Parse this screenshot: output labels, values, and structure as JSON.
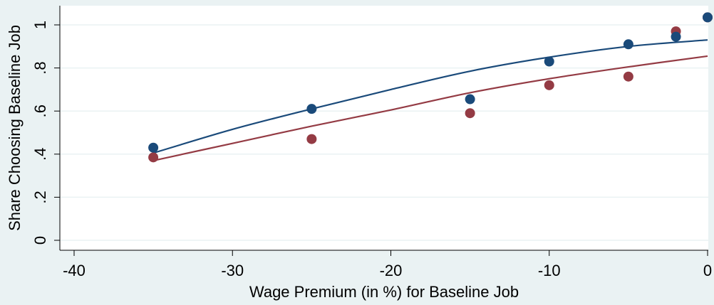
{
  "chart_data": {
    "type": "scatter",
    "xlabel": "Wage Premium (in %) for Baseline Job",
    "ylabel": "Share Choosing Baseline Job",
    "xlim": [
      -40,
      0
    ],
    "ylim": [
      0,
      1
    ],
    "x_ticks": [
      -40,
      -30,
      -20,
      -10,
      0
    ],
    "y_ticks": [
      0,
      0.2,
      0.4,
      0.6,
      0.8,
      1
    ],
    "x_tick_labels": [
      "-40",
      "-30",
      "-20",
      "-10",
      "0"
    ],
    "y_tick_labels": [
      "0",
      ".2",
      ".4",
      ".6",
      ".8",
      "1"
    ],
    "grid": "horizontal",
    "series": [
      {
        "color": "#1a4a7a",
        "points": [
          {
            "x": -35,
            "y": 0.43
          },
          {
            "x": -25,
            "y": 0.61
          },
          {
            "x": -15,
            "y": 0.655
          },
          {
            "x": -10,
            "y": 0.83
          },
          {
            "x": -5,
            "y": 0.91
          },
          {
            "x": -2,
            "y": 0.945
          },
          {
            "x": 0,
            "y": 1.035
          }
        ],
        "fit_line": [
          {
            "x": -35,
            "y": 0.405
          },
          {
            "x": -30,
            "y": 0.515
          },
          {
            "x": -25,
            "y": 0.61
          },
          {
            "x": -20,
            "y": 0.7
          },
          {
            "x": -15,
            "y": 0.785
          },
          {
            "x": -10,
            "y": 0.85
          },
          {
            "x": -5,
            "y": 0.9
          },
          {
            "x": 0,
            "y": 0.93
          }
        ]
      },
      {
        "color": "#943b44",
        "points": [
          {
            "x": -35,
            "y": 0.385
          },
          {
            "x": -25,
            "y": 0.47
          },
          {
            "x": -15,
            "y": 0.59
          },
          {
            "x": -10,
            "y": 0.72
          },
          {
            "x": -5,
            "y": 0.76
          },
          {
            "x": -2,
            "y": 0.97
          },
          {
            "x": 0,
            "y": 1.035
          }
        ],
        "fit_line": [
          {
            "x": -35,
            "y": 0.37
          },
          {
            "x": -30,
            "y": 0.45
          },
          {
            "x": -25,
            "y": 0.53
          },
          {
            "x": -20,
            "y": 0.605
          },
          {
            "x": -15,
            "y": 0.685
          },
          {
            "x": -10,
            "y": 0.75
          },
          {
            "x": -5,
            "y": 0.805
          },
          {
            "x": 0,
            "y": 0.855
          }
        ]
      }
    ]
  }
}
